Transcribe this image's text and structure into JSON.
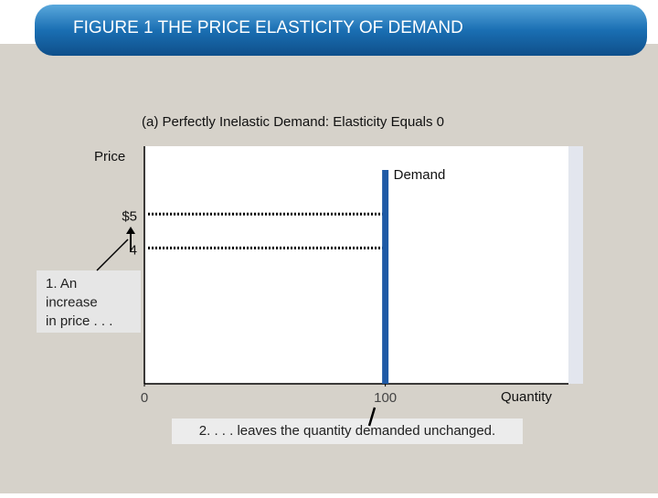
{
  "chart_data": {
    "type": "line",
    "title": "FIGURE 1 THE PRICE ELASTICITY OF DEMAND",
    "subtitle": "(a) Perfectly Inelastic Demand: Elasticity Equals 0",
    "y_label": "Price",
    "x_label": "Quantity",
    "xlim": [
      0,
      176
    ],
    "ylim": [
      0,
      7
    ],
    "xticks": [
      0,
      100
    ],
    "yticks": [
      {
        "value": 5,
        "label": "$5"
      },
      4
    ],
    "series": [
      {
        "name": "Demand",
        "color": "#1f5aa6",
        "x": [
          100,
          100
        ],
        "values": [
          0,
          6.3
        ]
      }
    ],
    "annotations": [
      [
        "1. An",
        "increase",
        "in price . . ."
      ],
      [
        "2. . . . leaves the quantity demanded unchanged."
      ]
    ]
  }
}
